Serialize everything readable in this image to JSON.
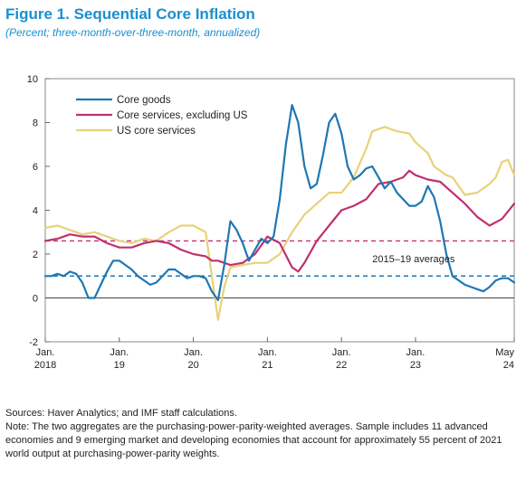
{
  "figure": {
    "title": "Figure 1.  Sequential Core Inflation",
    "subtitle": "(Percent; three-month-over-three-month, annualized)"
  },
  "notes": {
    "sources": "Sources: Haver Analytics; and IMF staff calculations.",
    "note": "Note: The two aggregates are the purchasing-power-parity-weighted averages. Sample includes 11 advanced economies and 9 emerging market and developing economies that account for approximately 55 percent of 2021 world output at purchasing-power-parity weights."
  },
  "chart_data": {
    "type": "line",
    "title": "Figure 1.  Sequential Core Inflation",
    "subtitle": "(Percent; three-month-over-three-month, annualized)",
    "x_unit": "months since Jan. 2018",
    "xlim": [
      0,
      76
    ],
    "ylim": [
      -2,
      10
    ],
    "yticks": [
      -2,
      0,
      2,
      4,
      6,
      8,
      10
    ],
    "xticks": [
      {
        "x": 0,
        "line1": "Jan.",
        "line2": "2018"
      },
      {
        "x": 12,
        "line1": "Jan.",
        "line2": "19"
      },
      {
        "x": 24,
        "line1": "Jan.",
        "line2": "20"
      },
      {
        "x": 36,
        "line1": "Jan.",
        "line2": "21"
      },
      {
        "x": 48,
        "line1": "Jan.",
        "line2": "22"
      },
      {
        "x": 60,
        "line1": "Jan.",
        "line2": "23"
      },
      {
        "x": 76,
        "line1": "May",
        "line2": "24"
      }
    ],
    "legend_position": "top-left",
    "annotation": {
      "text": "2015–19 averages",
      "x": 53,
      "y": 1.8
    },
    "reference_lines": [
      {
        "name": "Core goods 2015–19 average",
        "value": 1.0,
        "color": "#1f77b4",
        "style": "dashed"
      },
      {
        "name": "Core services 2015–19 average",
        "value": 2.6,
        "color": "#c0306e",
        "style": "dashed"
      }
    ],
    "series": [
      {
        "name": "Core goods",
        "color": "#1f77b4",
        "points": [
          [
            0,
            1.0
          ],
          [
            1,
            1.0
          ],
          [
            2,
            1.1
          ],
          [
            3,
            1.0
          ],
          [
            4,
            1.2
          ],
          [
            5,
            1.1
          ],
          [
            6,
            0.7
          ],
          [
            7,
            0.0
          ],
          [
            8,
            0.0
          ],
          [
            9,
            0.6
          ],
          [
            10,
            1.2
          ],
          [
            11,
            1.7
          ],
          [
            12,
            1.7
          ],
          [
            13,
            1.5
          ],
          [
            14,
            1.3
          ],
          [
            15,
            1.0
          ],
          [
            16,
            0.8
          ],
          [
            17,
            0.6
          ],
          [
            18,
            0.7
          ],
          [
            19,
            1.0
          ],
          [
            20,
            1.3
          ],
          [
            21,
            1.3
          ],
          [
            22,
            1.1
          ],
          [
            23,
            0.9
          ],
          [
            24,
            1.0
          ],
          [
            25,
            1.0
          ],
          [
            26,
            0.9
          ],
          [
            27,
            0.3
          ],
          [
            28,
            -0.1
          ],
          [
            29,
            1.5
          ],
          [
            30,
            3.5
          ],
          [
            31,
            3.1
          ],
          [
            32,
            2.5
          ],
          [
            33,
            1.7
          ],
          [
            34,
            2.2
          ],
          [
            35,
            2.7
          ],
          [
            36,
            2.5
          ],
          [
            37,
            2.8
          ],
          [
            38,
            4.5
          ],
          [
            39,
            7.0
          ],
          [
            40,
            8.8
          ],
          [
            41,
            8.0
          ],
          [
            42,
            6.0
          ],
          [
            43,
            5.0
          ],
          [
            44,
            5.2
          ],
          [
            45,
            6.5
          ],
          [
            46,
            8.0
          ],
          [
            47,
            8.4
          ],
          [
            48,
            7.5
          ],
          [
            49,
            6.0
          ],
          [
            50,
            5.4
          ],
          [
            51,
            5.6
          ],
          [
            52,
            5.9
          ],
          [
            53,
            6.0
          ],
          [
            54,
            5.5
          ],
          [
            55,
            5.0
          ],
          [
            56,
            5.3
          ],
          [
            57,
            4.8
          ],
          [
            58,
            4.5
          ],
          [
            59,
            4.2
          ],
          [
            60,
            4.2
          ],
          [
            61,
            4.4
          ],
          [
            62,
            5.1
          ],
          [
            63,
            4.6
          ],
          [
            64,
            3.5
          ],
          [
            65,
            2.0
          ],
          [
            66,
            1.0
          ],
          [
            67,
            0.8
          ],
          [
            68,
            0.6
          ],
          [
            69,
            0.5
          ],
          [
            70,
            0.4
          ],
          [
            71,
            0.3
          ],
          [
            72,
            0.5
          ],
          [
            73,
            0.8
          ],
          [
            74,
            0.9
          ],
          [
            75,
            0.9
          ],
          [
            76,
            0.7
          ]
        ]
      },
      {
        "name": "Core services, excluding US",
        "color": "#c0306e",
        "points": [
          [
            0,
            2.6
          ],
          [
            2,
            2.7
          ],
          [
            4,
            2.9
          ],
          [
            6,
            2.8
          ],
          [
            8,
            2.8
          ],
          [
            10,
            2.5
          ],
          [
            12,
            2.3
          ],
          [
            14,
            2.3
          ],
          [
            16,
            2.5
          ],
          [
            18,
            2.6
          ],
          [
            20,
            2.5
          ],
          [
            22,
            2.2
          ],
          [
            24,
            2.0
          ],
          [
            26,
            1.9
          ],
          [
            27,
            1.7
          ],
          [
            28,
            1.7
          ],
          [
            30,
            1.5
          ],
          [
            32,
            1.6
          ],
          [
            34,
            2.0
          ],
          [
            36,
            2.8
          ],
          [
            38,
            2.5
          ],
          [
            40,
            1.4
          ],
          [
            41,
            1.2
          ],
          [
            42,
            1.6
          ],
          [
            44,
            2.6
          ],
          [
            46,
            3.3
          ],
          [
            48,
            4.0
          ],
          [
            50,
            4.2
          ],
          [
            52,
            4.5
          ],
          [
            54,
            5.2
          ],
          [
            56,
            5.3
          ],
          [
            58,
            5.5
          ],
          [
            59,
            5.8
          ],
          [
            60,
            5.6
          ],
          [
            62,
            5.4
          ],
          [
            64,
            5.3
          ],
          [
            66,
            4.8
          ],
          [
            68,
            4.3
          ],
          [
            70,
            3.7
          ],
          [
            72,
            3.3
          ],
          [
            74,
            3.6
          ],
          [
            76,
            4.3
          ]
        ]
      },
      {
        "name": "US core services",
        "color": "#e8d27a",
        "points": [
          [
            0,
            3.2
          ],
          [
            2,
            3.3
          ],
          [
            4,
            3.1
          ],
          [
            6,
            2.9
          ],
          [
            8,
            3.0
          ],
          [
            10,
            2.8
          ],
          [
            12,
            2.6
          ],
          [
            14,
            2.5
          ],
          [
            16,
            2.7
          ],
          [
            18,
            2.6
          ],
          [
            20,
            3.0
          ],
          [
            22,
            3.3
          ],
          [
            24,
            3.3
          ],
          [
            26,
            3.0
          ],
          [
            27,
            1.0
          ],
          [
            28,
            -1.0
          ],
          [
            29,
            0.5
          ],
          [
            30,
            1.4
          ],
          [
            32,
            1.5
          ],
          [
            34,
            1.6
          ],
          [
            36,
            1.6
          ],
          [
            38,
            2.0
          ],
          [
            40,
            3.0
          ],
          [
            42,
            3.8
          ],
          [
            44,
            4.3
          ],
          [
            46,
            4.8
          ],
          [
            48,
            4.8
          ],
          [
            50,
            5.5
          ],
          [
            52,
            6.8
          ],
          [
            53,
            7.6
          ],
          [
            55,
            7.8
          ],
          [
            57,
            7.6
          ],
          [
            59,
            7.5
          ],
          [
            60,
            7.1
          ],
          [
            62,
            6.6
          ],
          [
            63,
            6.0
          ],
          [
            65,
            5.6
          ],
          [
            66,
            5.5
          ],
          [
            68,
            4.7
          ],
          [
            70,
            4.8
          ],
          [
            72,
            5.2
          ],
          [
            73,
            5.5
          ],
          [
            74,
            6.2
          ],
          [
            75,
            6.3
          ],
          [
            76,
            5.6
          ]
        ]
      }
    ]
  }
}
